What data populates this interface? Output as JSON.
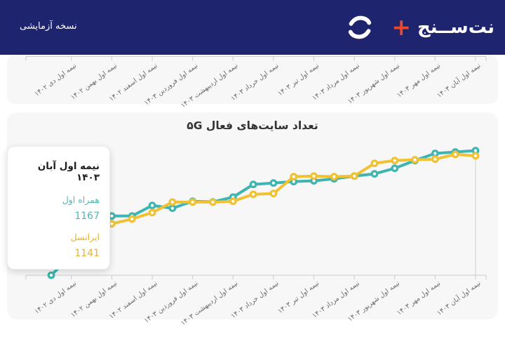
{
  "colors": {
    "header_bg": "#1F246E",
    "page_bg": "#FFFFFF",
    "card_bg": "#F7F7F7",
    "axis_line": "#CBCBCB",
    "axis_label_text": "#6B6B6B",
    "title_text": "#333333",
    "brand_plus": "#E8492B",
    "crosshair": "#CCCCCC",
    "tooltip_hamrah_text": "#4FB8B2",
    "tooltip_irancell_text": "#E3B62E"
  },
  "header": {
    "trial_label": "نسخه آزمایشی",
    "brand_name": "نت‌ســنج",
    "brand_plus": "+",
    "logo_icon": "swirl-wave-icon"
  },
  "top_strip": {
    "labels": [
      "نیمه اول دی ۱۴۰۲",
      "نیمه اول بهمن ۱۴۰۲",
      "نیمه اول اسفند ۱۴۰۲",
      "نیمه اول فروردین ۱۴۰۳",
      "نیمه اول اردیبهشت ۱۴۰۳",
      "نیمه اول خرداد ۱۴۰۳",
      "نیمه اول تیر ۱۴۰۳",
      "نیمه اول مرداد ۱۴۰۳",
      "نیمه اول شهریور ۱۴۰۳",
      "نیمه اول مهر ۱۴۰۳",
      "نیمه اول آبان ۱۴۰۳"
    ]
  },
  "chart": {
    "title": "تعداد سایت‌های فعال ۵G",
    "tooltip": {
      "title": "نیمه اول آبان ۱۴۰۳",
      "rows": [
        {
          "label": "همراه اول",
          "value": "1167",
          "color": "#4FB8B2"
        },
        {
          "label": "ایرانسل",
          "value": "1141",
          "color": "#E3B62E"
        }
      ]
    }
  },
  "chart_data": {
    "type": "line",
    "title": "تعداد سایت‌های فعال ۵G",
    "x_labels": [
      "نیمه اول دی ۱۴۰۲",
      "نیمه اول بهمن ۱۴۰۲",
      "نیمه اول اسفند ۱۴۰۲",
      "نیمه اول فروردین ۱۴۰۳",
      "نیمه اول اردیبهشت ۱۴۰۳",
      "نیمه اول خرداد ۱۴۰۳",
      "نیمه اول تیر ۱۴۰۳",
      "نیمه اول مرداد ۱۴۰۳",
      "نیمه اول شهریور ۱۴۰۳",
      "نیمه اول مهر ۱۴۰۳",
      "نیمه اول آبان ۱۴۰۳"
    ],
    "num_points": 22,
    "label_point_indices": [
      1,
      3,
      5,
      7,
      9,
      11,
      13,
      15,
      17,
      19,
      21
    ],
    "series": [
      {
        "name": "همراه اول",
        "color": "#3FB4B0",
        "values": [
          540,
          640,
          740,
          838,
          838,
          891,
          877,
          912,
          909,
          933,
          997,
          1004,
          1011,
          1015,
          1025,
          1039,
          1050,
          1078,
          1117,
          1153,
          1160,
          1167
        ]
      },
      {
        "name": "ایرانسل",
        "color": "#F0C233",
        "values": [
          700,
          733,
          766,
          799,
          823,
          855,
          908,
          908,
          908,
          912,
          947,
          951,
          1036,
          1039,
          1036,
          1039,
          1103,
          1117,
          1121,
          1124,
          1148,
          1141
        ]
      }
    ],
    "ylim": [
      540,
      1190
    ],
    "y_axis_visible": false,
    "grid": false,
    "legend": false,
    "highlighted_index": 21,
    "highlighted_values": {
      "همراه اول": 1167,
      "ایرانسل": 1141
    }
  }
}
